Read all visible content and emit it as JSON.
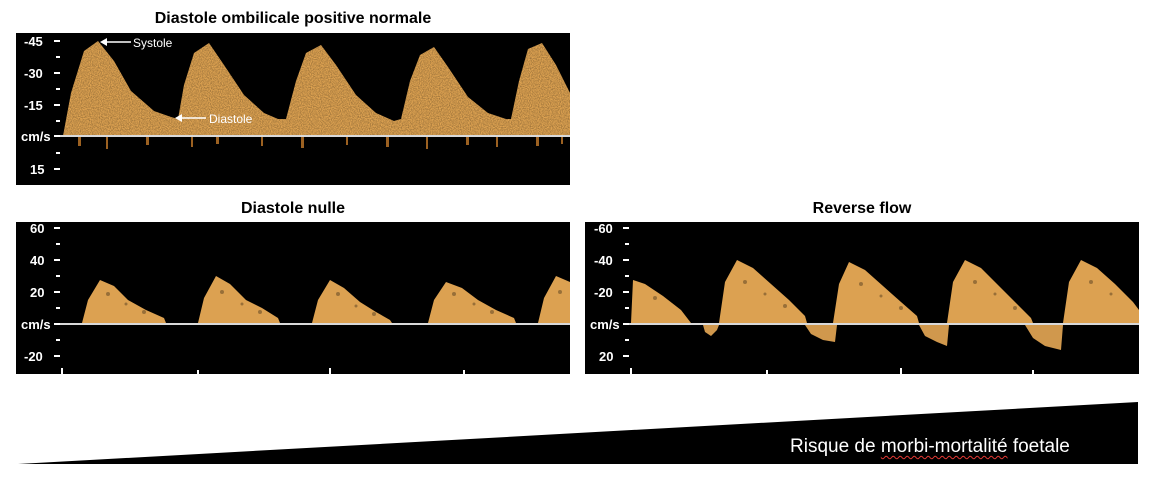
{
  "panels": {
    "normal": {
      "title": "Diastole ombilicale positive normale",
      "ticks": [
        "-45",
        "-30",
        "-15",
        "cm/s",
        "15"
      ],
      "annotations": {
        "systole": "Systole",
        "diastole": "Diastole"
      }
    },
    "null": {
      "title": "Diastole nulle",
      "ticks": [
        "60",
        "40",
        "20",
        "cm/s",
        "-20"
      ]
    },
    "reverse": {
      "title": "Reverse flow",
      "ticks": [
        "-60",
        "-40",
        "-20",
        "cm/s",
        "20"
      ]
    }
  },
  "risk": {
    "label_part1": "Risque de ",
    "label_part2": "morbi-mortalité",
    "label_part3": " foetale"
  },
  "colors": {
    "doppler": "#f4b35a",
    "baseline": "#d9d9d9",
    "panel_bg": "#000000"
  }
}
